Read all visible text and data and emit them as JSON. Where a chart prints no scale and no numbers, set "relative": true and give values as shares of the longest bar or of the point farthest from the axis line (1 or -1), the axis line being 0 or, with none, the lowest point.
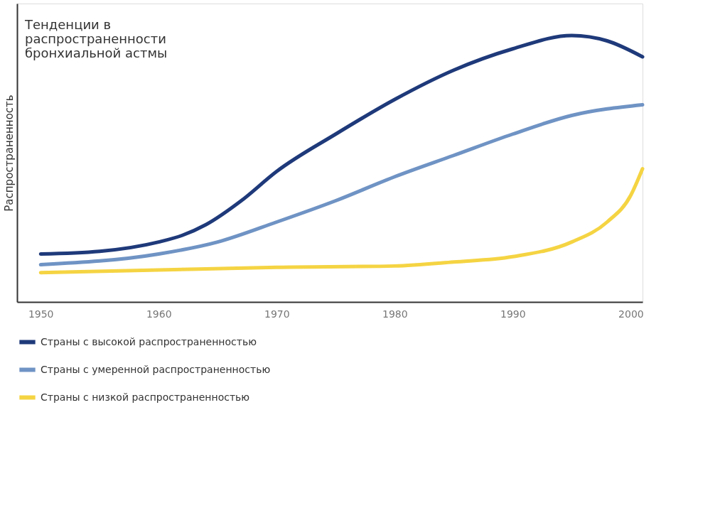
{
  "chart_data": {
    "type": "line",
    "title": [
      "Тенденции в",
      "распространенности",
      "бронхиальной астмы"
    ],
    "ylabel": "Распространенность",
    "relative": true,
    "xlim": [
      1948,
      2001
    ],
    "xticks": [
      1950,
      1960,
      1970,
      1980,
      1990,
      2000
    ],
    "grid": false,
    "legend": "bottom",
    "marker": "none",
    "line_style": "solid",
    "series": [
      {
        "name": "Страны с высокой распространенностью",
        "color": "#1f3a7a",
        "x": [
          1950,
          1955,
          1960,
          1962,
          1964,
          1967,
          1970,
          1975,
          1980,
          1985,
          1990,
          1995,
          1998,
          2001
        ],
        "values": [
          0.18,
          0.19,
          0.225,
          0.25,
          0.29,
          0.38,
          0.49,
          0.63,
          0.76,
          0.87,
          0.95,
          1.0,
          0.98,
          0.92
        ]
      },
      {
        "name": "Страны с умеренной распространенностью",
        "color": "#6f93c4",
        "x": [
          1950,
          1960,
          1965,
          1970,
          1975,
          1980,
          1985,
          1990,
          1995,
          2001
        ],
        "values": [
          0.14,
          0.18,
          0.225,
          0.3,
          0.38,
          0.47,
          0.55,
          0.63,
          0.7,
          0.74
        ]
      },
      {
        "name": "Страны с низкой распространенностью",
        "color": "#f5d443",
        "x": [
          1950,
          1960,
          1970,
          1980,
          1985,
          1990,
          1995,
          1998,
          2000,
          2001
        ],
        "values": [
          0.11,
          0.12,
          0.13,
          0.135,
          0.15,
          0.17,
          0.225,
          0.3,
          0.4,
          0.5
        ]
      }
    ]
  }
}
